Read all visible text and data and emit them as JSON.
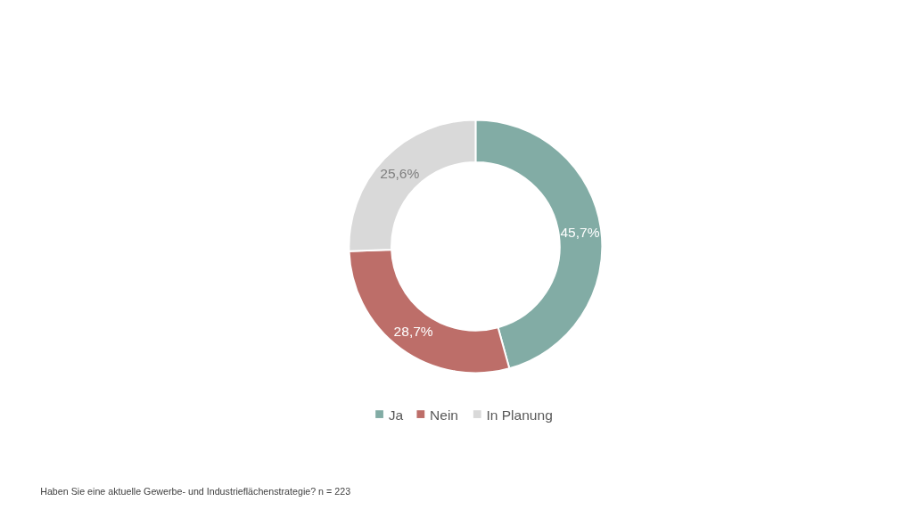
{
  "chart_data": {
    "type": "donut",
    "categories": [
      "Ja",
      "Nein",
      "In Planung"
    ],
    "values": [
      45.7,
      28.7,
      25.6
    ],
    "colors": [
      "#82aca5",
      "#bd6e69",
      "#d9d9d9"
    ],
    "value_labels": [
      "45,7%",
      "28,7%",
      "25,6%"
    ],
    "legend": "bottom",
    "annotations": [
      "Haben Sie eine aktuelle Gewerbe- und Industrieflächenstrategie? n = 223"
    ]
  }
}
